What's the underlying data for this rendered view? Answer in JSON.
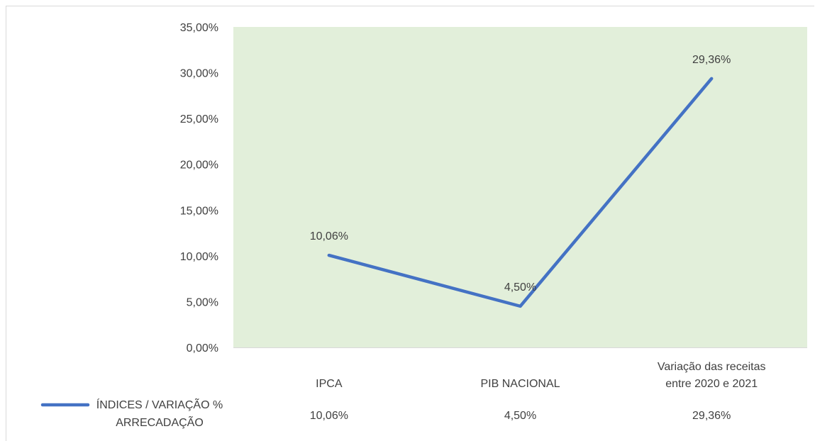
{
  "chart_data": {
    "type": "line",
    "categories": [
      [
        "IPCA"
      ],
      [
        "PIB NACIONAL"
      ],
      [
        "Variação das receitas",
        "entre 2020 e 2021"
      ]
    ],
    "series": [
      {
        "name": [
          "ÍNDICES / VARIAÇÃO %",
          "ARRECADAÇÃO"
        ],
        "values": [
          10.06,
          4.5,
          29.36
        ],
        "labels": [
          "10,06%",
          "4,50%",
          "29,36%"
        ],
        "color": "#4472c4"
      }
    ],
    "y_ticks": [
      "0,00%",
      "5,00%",
      "10,00%",
      "15,00%",
      "20,00%",
      "25,00%",
      "30,00%",
      "35,00%"
    ],
    "ylim": [
      0,
      35
    ],
    "plot_background": "#e2efda",
    "grid": false,
    "data_table": true
  }
}
